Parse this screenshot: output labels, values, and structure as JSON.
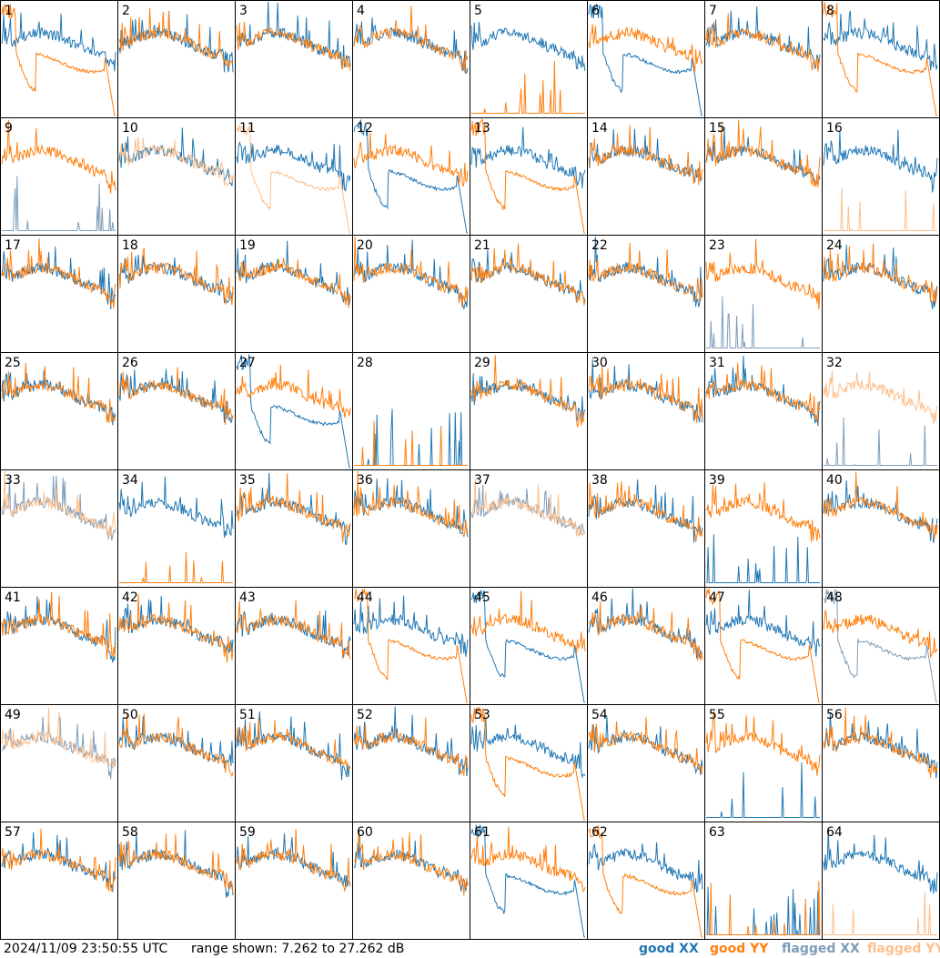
{
  "footer": {
    "timestamp": "2024/11/09 23:50:55 UTC",
    "range_text": "range shown: 7.262 to 27.262 dB"
  },
  "legend": {
    "good_xx": "good XX",
    "good_yy": "good YY",
    "flagged_xx": "flagged XX",
    "flagged_yy": "flagged YY"
  },
  "colors": {
    "good_xx": "#1f77b4",
    "good_yy": "#ff7f0e",
    "flagged_xx": "#7f9db9",
    "flagged_yy": "#fdbf8b",
    "grid": "#000000"
  },
  "chart_data": {
    "type": "line",
    "title": "",
    "y_unit": "dB",
    "ylim": [
      7.262,
      27.262
    ],
    "layout": "8x8 small multiples",
    "panels": [
      {
        "label": "1",
        "xx": "good",
        "yy": "good",
        "yy_shape": "dip"
      },
      {
        "label": "2",
        "xx": "good",
        "yy": "good"
      },
      {
        "label": "3",
        "xx": "good",
        "yy": "good"
      },
      {
        "label": "4",
        "xx": "good",
        "yy": "good"
      },
      {
        "label": "5",
        "xx": "good",
        "yy": "good",
        "yy_shape": "dead"
      },
      {
        "label": "6",
        "xx": "good",
        "yy": "good",
        "xx_shape": "dip"
      },
      {
        "label": "7",
        "xx": "good",
        "yy": "good"
      },
      {
        "label": "8",
        "xx": "good",
        "yy": "good",
        "yy_shape": "dip"
      },
      {
        "label": "9",
        "xx": "flagged",
        "yy": "good",
        "xx_shape": "dead"
      },
      {
        "label": "10",
        "xx": "good",
        "yy": "flagged"
      },
      {
        "label": "11",
        "xx": "good",
        "yy": "flagged",
        "yy_shape": "dip"
      },
      {
        "label": "12",
        "xx": "good",
        "yy": "good",
        "xx_shape": "dip"
      },
      {
        "label": "13",
        "xx": "good",
        "yy": "good",
        "yy_shape": "dip"
      },
      {
        "label": "14",
        "xx": "good",
        "yy": "good"
      },
      {
        "label": "15",
        "xx": "good",
        "yy": "good"
      },
      {
        "label": "16",
        "xx": "good",
        "yy": "flagged",
        "yy_shape": "dead"
      },
      {
        "label": "17",
        "xx": "good",
        "yy": "good"
      },
      {
        "label": "18",
        "xx": "good",
        "yy": "good"
      },
      {
        "label": "19",
        "xx": "good",
        "yy": "good"
      },
      {
        "label": "20",
        "xx": "good",
        "yy": "good"
      },
      {
        "label": "21",
        "xx": "good",
        "yy": "good"
      },
      {
        "label": "22",
        "xx": "good",
        "yy": "good"
      },
      {
        "label": "23",
        "xx": "flagged",
        "yy": "good",
        "xx_shape": "dead"
      },
      {
        "label": "24",
        "xx": "good",
        "yy": "good"
      },
      {
        "label": "25",
        "xx": "good",
        "yy": "good"
      },
      {
        "label": "26",
        "xx": "good",
        "yy": "good"
      },
      {
        "label": "27",
        "xx": "good",
        "yy": "good",
        "xx_shape": "dip"
      },
      {
        "label": "28",
        "xx": "good",
        "yy": "good",
        "xx_shape": "dead",
        "yy_shape": "dead"
      },
      {
        "label": "29",
        "xx": "good",
        "yy": "good"
      },
      {
        "label": "30",
        "xx": "good",
        "yy": "good"
      },
      {
        "label": "31",
        "xx": "good",
        "yy": "good"
      },
      {
        "label": "32",
        "xx": "flagged",
        "yy": "flagged",
        "xx_shape": "dead"
      },
      {
        "label": "33",
        "xx": "flagged",
        "yy": "flagged"
      },
      {
        "label": "34",
        "xx": "good",
        "yy": "good",
        "yy_shape": "dead"
      },
      {
        "label": "35",
        "xx": "good",
        "yy": "good"
      },
      {
        "label": "36",
        "xx": "good",
        "yy": "good"
      },
      {
        "label": "37",
        "xx": "flagged",
        "yy": "flagged"
      },
      {
        "label": "38",
        "xx": "good",
        "yy": "good"
      },
      {
        "label": "39",
        "xx": "good",
        "yy": "good",
        "xx_shape": "dead"
      },
      {
        "label": "40",
        "xx": "good",
        "yy": "good"
      },
      {
        "label": "41",
        "xx": "good",
        "yy": "good"
      },
      {
        "label": "42",
        "xx": "good",
        "yy": "good"
      },
      {
        "label": "43",
        "xx": "good",
        "yy": "good"
      },
      {
        "label": "44",
        "xx": "good",
        "yy": "good",
        "yy_shape": "dip"
      },
      {
        "label": "45",
        "xx": "good",
        "yy": "good",
        "xx_shape": "dip"
      },
      {
        "label": "46",
        "xx": "good",
        "yy": "good"
      },
      {
        "label": "47",
        "xx": "good",
        "yy": "good",
        "yy_shape": "dip"
      },
      {
        "label": "48",
        "xx": "flagged",
        "yy": "good",
        "xx_shape": "dip"
      },
      {
        "label": "49",
        "xx": "flagged",
        "yy": "flagged"
      },
      {
        "label": "50",
        "xx": "good",
        "yy": "good"
      },
      {
        "label": "51",
        "xx": "good",
        "yy": "good"
      },
      {
        "label": "52",
        "xx": "good",
        "yy": "good"
      },
      {
        "label": "53",
        "xx": "good",
        "yy": "good",
        "yy_shape": "dip"
      },
      {
        "label": "54",
        "xx": "good",
        "yy": "good"
      },
      {
        "label": "55",
        "xx": "good",
        "yy": "good",
        "xx_shape": "dead"
      },
      {
        "label": "56",
        "xx": "good",
        "yy": "good"
      },
      {
        "label": "57",
        "xx": "good",
        "yy": "good"
      },
      {
        "label": "58",
        "xx": "good",
        "yy": "good"
      },
      {
        "label": "59",
        "xx": "good",
        "yy": "good"
      },
      {
        "label": "60",
        "xx": "good",
        "yy": "good"
      },
      {
        "label": "61",
        "xx": "good",
        "yy": "good",
        "xx_shape": "dip"
      },
      {
        "label": "62",
        "xx": "good",
        "yy": "good",
        "yy_shape": "dip"
      },
      {
        "label": "63",
        "xx": "good",
        "yy": "good",
        "xx_shape": "dead",
        "yy_shape": "dead"
      },
      {
        "label": "64",
        "xx": "good",
        "yy": "flagged",
        "yy_shape": "dead"
      }
    ]
  }
}
